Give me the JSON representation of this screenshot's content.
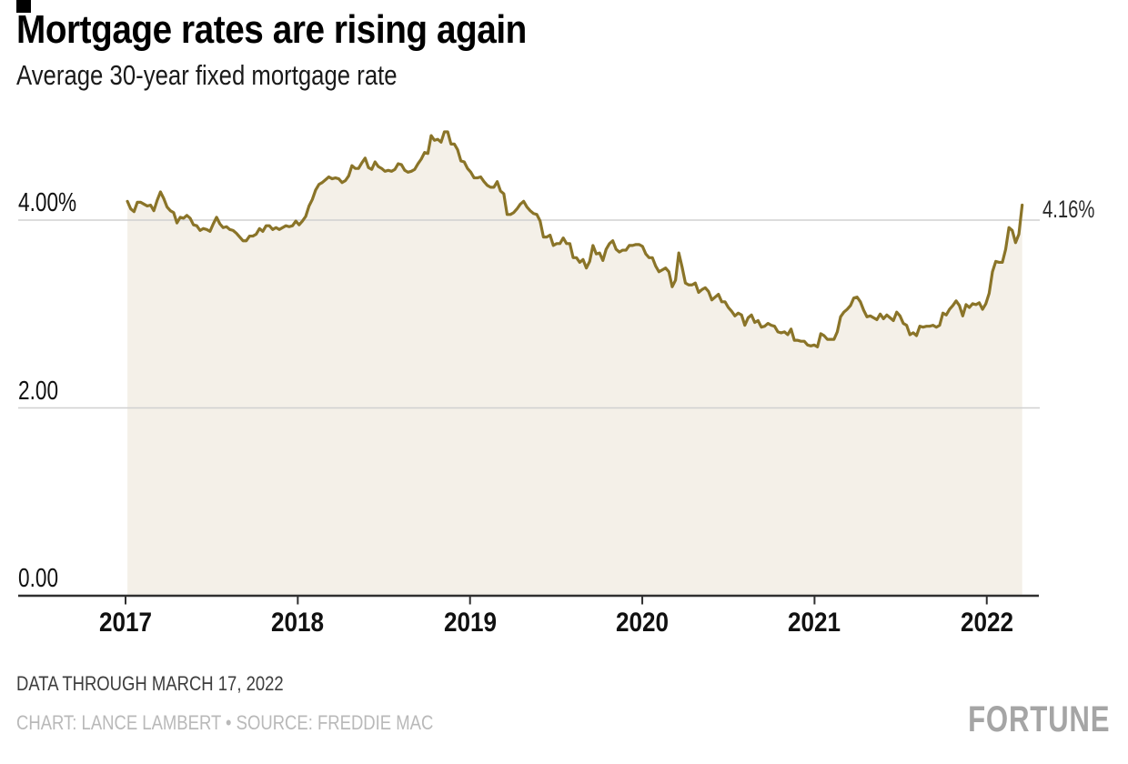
{
  "header": {
    "title": "Mortgage rates are rising again",
    "subtitle": "Average 30-year fixed mortgage rate"
  },
  "footer": {
    "note": "DATA THROUGH MARCH 17, 2022",
    "credit": "CHART: LANCE LAMBERT • SOURCE: FREDDIE MAC",
    "logo": "FORTUNE"
  },
  "chart_data": {
    "type": "area",
    "title": "Mortgage rates are rising again",
    "subtitle": "Average 30-year fixed mortgage rate",
    "xlabel": "",
    "ylabel": "Average 30-year fixed mortgage rate (%)",
    "grid": "horizontal",
    "legend": "none",
    "x_domain": [
      2017.0,
      2022.3
    ],
    "ylim": [
      0,
      5.1
    ],
    "x_data_range": [
      2017.011,
      2022.2055
    ],
    "y_ticks": [
      {
        "value": 4,
        "label": "4.00%"
      },
      {
        "value": 2,
        "label": "2.00"
      },
      {
        "value": 0,
        "label": "0.00"
      }
    ],
    "x_ticks": [
      {
        "value": 2017,
        "label": "2017"
      },
      {
        "value": 2018,
        "label": "2018"
      },
      {
        "value": 2019,
        "label": "2019"
      },
      {
        "value": 2020,
        "label": "2020"
      },
      {
        "value": 2021,
        "label": "2021"
      },
      {
        "value": 2022,
        "label": "2022"
      }
    ],
    "end_annotation": {
      "label": "4.16%",
      "value": 4.16
    },
    "colors": {
      "line": "#8a7428",
      "fill": "#f4f0e8",
      "grid": "#d0d0d0",
      "axis": "#2f2f2f"
    },
    "series": [
      {
        "name": "Average 30-year fixed mortgage rate",
        "cadence": "weekly",
        "start": "2017-01-05",
        "end": "2022-03-17",
        "values": [
          4.2,
          4.12,
          4.09,
          4.19,
          4.19,
          4.17,
          4.15,
          4.16,
          4.1,
          4.21,
          4.3,
          4.23,
          4.14,
          4.1,
          4.08,
          3.97,
          4.03,
          4.02,
          4.05,
          4.02,
          3.95,
          3.94,
          3.89,
          3.91,
          3.9,
          3.88,
          3.96,
          4.03,
          3.96,
          3.92,
          3.93,
          3.9,
          3.89,
          3.86,
          3.82,
          3.78,
          3.78,
          3.83,
          3.83,
          3.85,
          3.91,
          3.88,
          3.94,
          3.94,
          3.9,
          3.92,
          3.9,
          3.92,
          3.94,
          3.93,
          3.94,
          3.99,
          3.95,
          3.99,
          4.04,
          4.15,
          4.22,
          4.32,
          4.38,
          4.4,
          4.43,
          4.46,
          4.44,
          4.45,
          4.44,
          4.4,
          4.42,
          4.47,
          4.58,
          4.55,
          4.55,
          4.61,
          4.66,
          4.56,
          4.54,
          4.62,
          4.57,
          4.55,
          4.52,
          4.53,
          4.52,
          4.54,
          4.6,
          4.59,
          4.53,
          4.51,
          4.52,
          4.54,
          4.6,
          4.65,
          4.72,
          4.71,
          4.9,
          4.85,
          4.86,
          4.83,
          4.94,
          4.94,
          4.81,
          4.81,
          4.75,
          4.63,
          4.62,
          4.55,
          4.51,
          4.45,
          4.45,
          4.46,
          4.41,
          4.37,
          4.35,
          4.35,
          4.41,
          4.31,
          4.28,
          4.06,
          4.06,
          4.08,
          4.12,
          4.17,
          4.2,
          4.14,
          4.1,
          4.07,
          4.06,
          3.99,
          3.82,
          3.82,
          3.84,
          3.73,
          3.75,
          3.75,
          3.81,
          3.75,
          3.75,
          3.6,
          3.6,
          3.55,
          3.58,
          3.49,
          3.56,
          3.73,
          3.64,
          3.65,
          3.57,
          3.69,
          3.75,
          3.78,
          3.69,
          3.66,
          3.68,
          3.68,
          3.73,
          3.73,
          3.74,
          3.74,
          3.72,
          3.64,
          3.6,
          3.6,
          3.51,
          3.45,
          3.47,
          3.49,
          3.45,
          3.29,
          3.36,
          3.65,
          3.5,
          3.33,
          3.31,
          3.31,
          3.33,
          3.23,
          3.26,
          3.28,
          3.24,
          3.15,
          3.18,
          3.21,
          3.13,
          3.13,
          3.07,
          3.03,
          2.98,
          3.01,
          2.99,
          2.88,
          2.96,
          2.99,
          2.91,
          2.93,
          2.86,
          2.87,
          2.9,
          2.88,
          2.87,
          2.81,
          2.8,
          2.81,
          2.78,
          2.84,
          2.72,
          2.72,
          2.71,
          2.71,
          2.67,
          2.66,
          2.67,
          2.65,
          2.79,
          2.77,
          2.73,
          2.73,
          2.73,
          2.81,
          2.97,
          3.02,
          3.05,
          3.09,
          3.17,
          3.18,
          3.13,
          3.04,
          2.97,
          2.98,
          2.96,
          2.94,
          3.0,
          2.95,
          2.99,
          2.96,
          2.93,
          3.02,
          2.98,
          2.9,
          2.88,
          2.78,
          2.8,
          2.77,
          2.87,
          2.86,
          2.87,
          2.87,
          2.88,
          2.86,
          2.88,
          3.01,
          2.99,
          3.05,
          3.09,
          3.14,
          3.09,
          2.98,
          3.1,
          3.07,
          3.11,
          3.1,
          3.12,
          3.05,
          3.11,
          3.22,
          3.45,
          3.56,
          3.55,
          3.55,
          3.69,
          3.92,
          3.89,
          3.76,
          3.85,
          4.16
        ]
      }
    ]
  }
}
